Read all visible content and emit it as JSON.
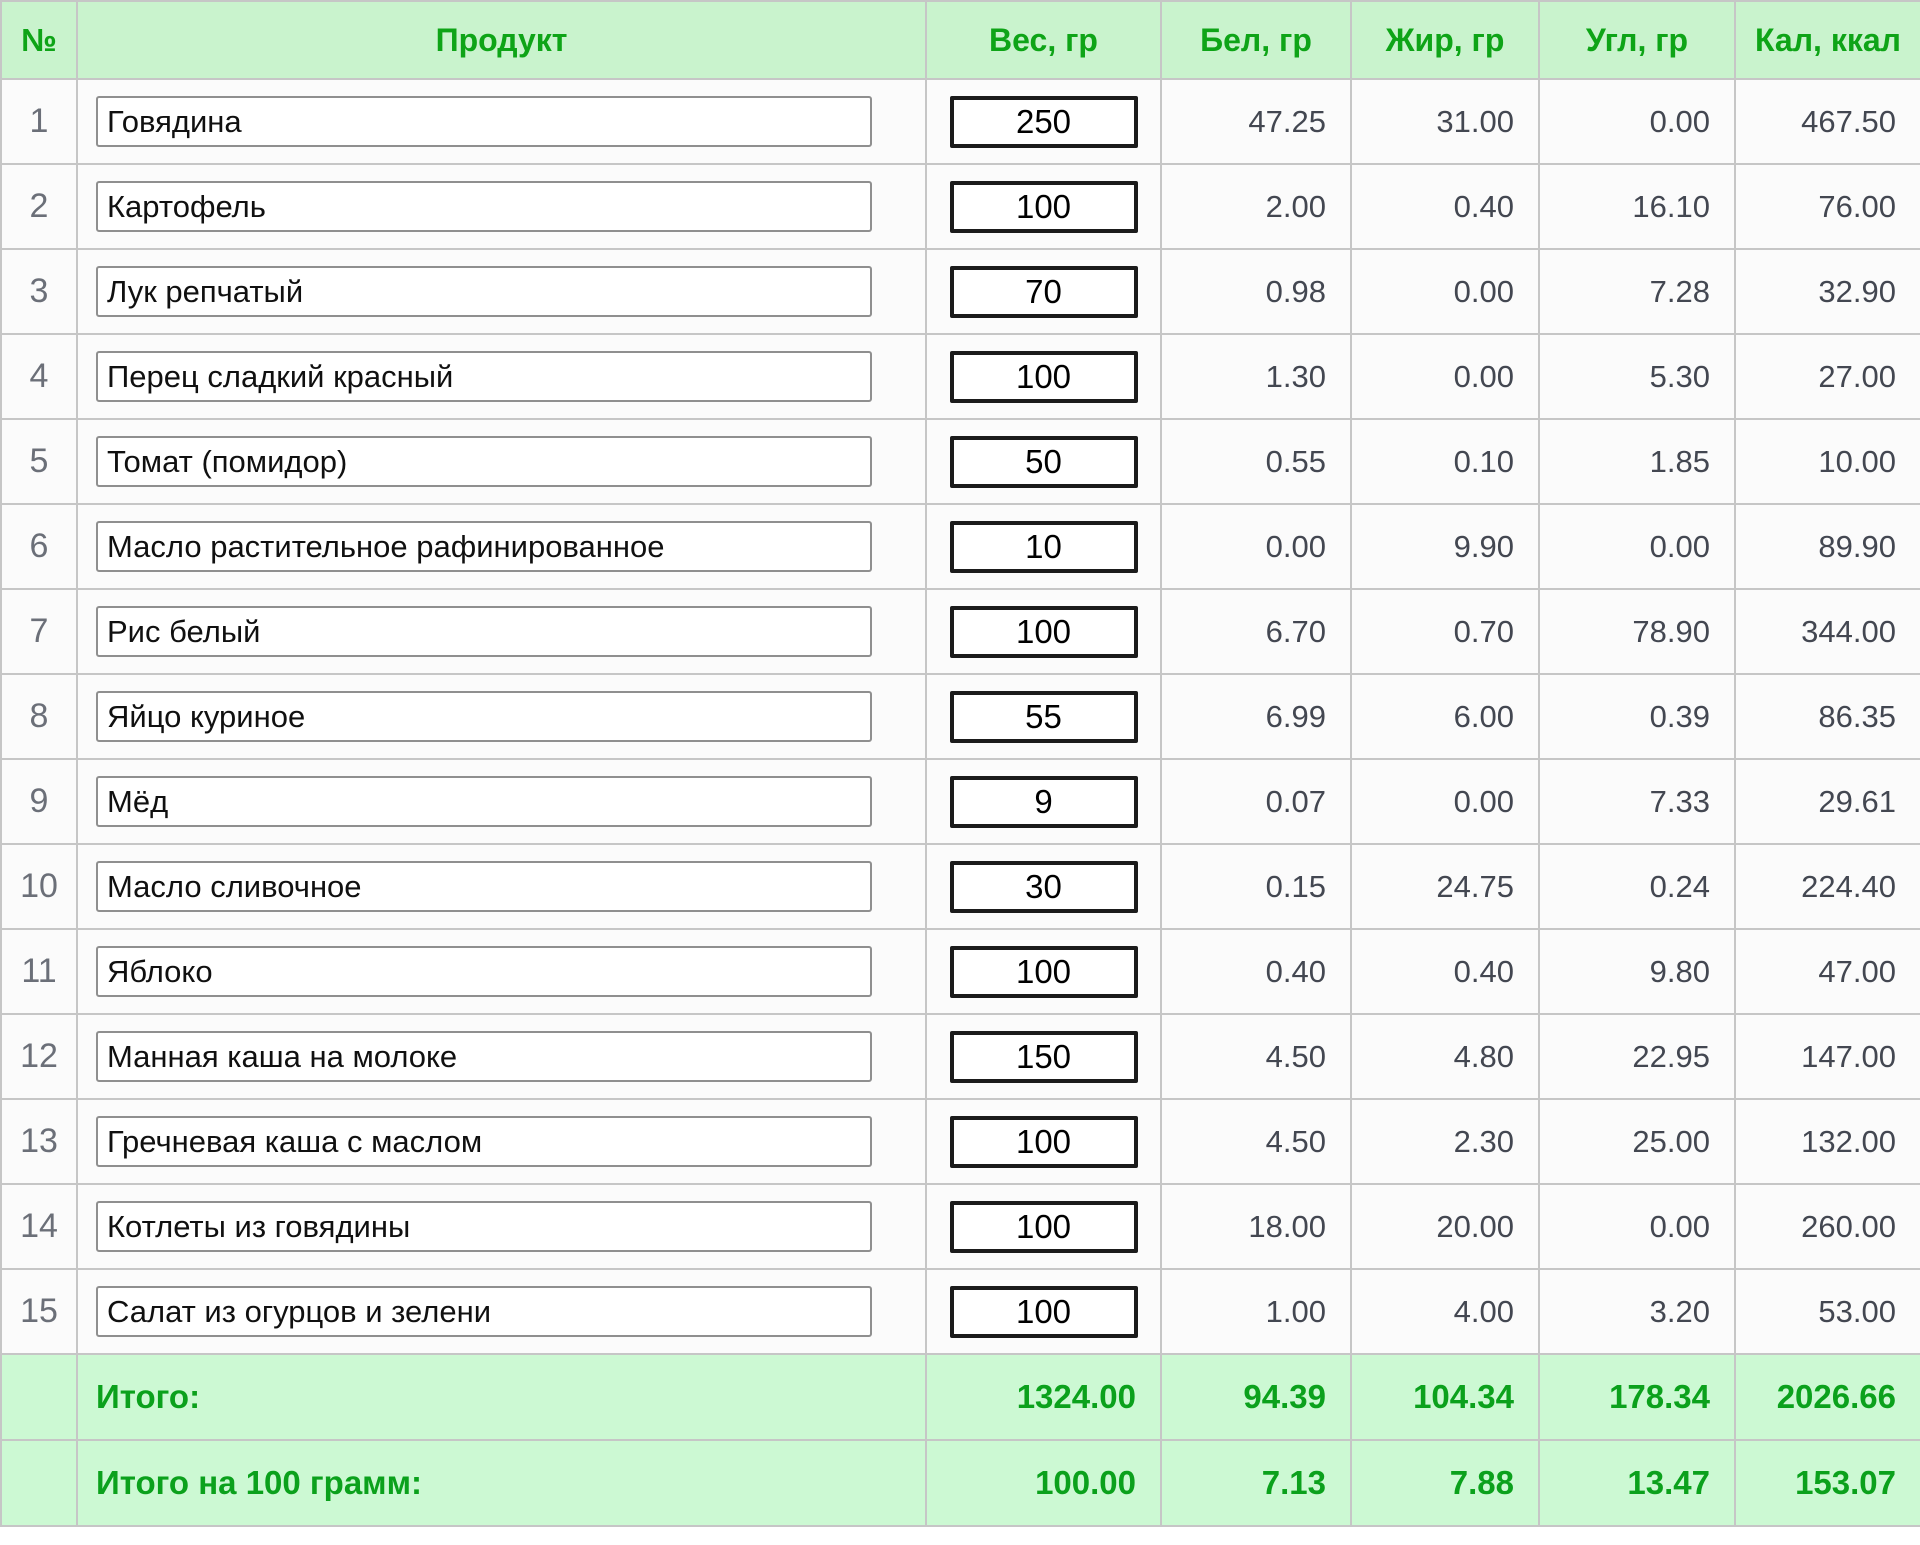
{
  "header": {
    "num": "№",
    "product": "Продукт",
    "weight": "Вес, гр",
    "protein": "Бел, гр",
    "fat": "Жир, гр",
    "carbs": "Угл, гр",
    "calories": "Кал, ккал"
  },
  "rows": [
    {
      "num": "1",
      "product": "Говядина",
      "weight": "250",
      "protein": "47.25",
      "fat": "31.00",
      "carbs": "0.00",
      "calories": "467.50"
    },
    {
      "num": "2",
      "product": "Картофель",
      "weight": "100",
      "protein": "2.00",
      "fat": "0.40",
      "carbs": "16.10",
      "calories": "76.00"
    },
    {
      "num": "3",
      "product": "Лук репчатый",
      "weight": "70",
      "protein": "0.98",
      "fat": "0.00",
      "carbs": "7.28",
      "calories": "32.90"
    },
    {
      "num": "4",
      "product": "Перец сладкий красный",
      "weight": "100",
      "protein": "1.30",
      "fat": "0.00",
      "carbs": "5.30",
      "calories": "27.00"
    },
    {
      "num": "5",
      "product": "Томат (помидор)",
      "weight": "50",
      "protein": "0.55",
      "fat": "0.10",
      "carbs": "1.85",
      "calories": "10.00"
    },
    {
      "num": "6",
      "product": "Масло растительное рафинированное",
      "weight": "10",
      "protein": "0.00",
      "fat": "9.90",
      "carbs": "0.00",
      "calories": "89.90"
    },
    {
      "num": "7",
      "product": "Рис белый",
      "weight": "100",
      "protein": "6.70",
      "fat": "0.70",
      "carbs": "78.90",
      "calories": "344.00"
    },
    {
      "num": "8",
      "product": "Яйцо куриное",
      "weight": "55",
      "protein": "6.99",
      "fat": "6.00",
      "carbs": "0.39",
      "calories": "86.35"
    },
    {
      "num": "9",
      "product": "Мёд",
      "weight": "9",
      "protein": "0.07",
      "fat": "0.00",
      "carbs": "7.33",
      "calories": "29.61"
    },
    {
      "num": "10",
      "product": "Масло сливочное",
      "weight": "30",
      "protein": "0.15",
      "fat": "24.75",
      "carbs": "0.24",
      "calories": "224.40"
    },
    {
      "num": "11",
      "product": "Яблоко",
      "weight": "100",
      "protein": "0.40",
      "fat": "0.40",
      "carbs": "9.80",
      "calories": "47.00"
    },
    {
      "num": "12",
      "product": "Манная каша на молоке",
      "weight": "150",
      "protein": "4.50",
      "fat": "4.80",
      "carbs": "22.95",
      "calories": "147.00"
    },
    {
      "num": "13",
      "product": "Гречневая каша с маслом",
      "weight": "100",
      "protein": "4.50",
      "fat": "2.30",
      "carbs": "25.00",
      "calories": "132.00"
    },
    {
      "num": "14",
      "product": "Котлеты из говядины",
      "weight": "100",
      "protein": "18.00",
      "fat": "20.00",
      "carbs": "0.00",
      "calories": "260.00"
    },
    {
      "num": "15",
      "product": "Салат из огурцов и зелени",
      "weight": "100",
      "protein": "1.00",
      "fat": "4.00",
      "carbs": "3.20",
      "calories": "53.00"
    }
  ],
  "totals": {
    "label": "Итого:",
    "weight": "1324.00",
    "protein": "94.39",
    "fat": "104.34",
    "carbs": "178.34",
    "calories": "2026.66"
  },
  "totals_per_100g": {
    "label": "Итого на 100 грамм:",
    "weight": "100.00",
    "protein": "7.13",
    "fat": "7.88",
    "carbs": "13.47",
    "calories": "153.07"
  },
  "colors": {
    "header_bg": "#c9f3cd",
    "header_text": "#0ea417",
    "totals_bg": "#ccf9d3",
    "totals_text": "#0ba11c",
    "grid_border": "#c6c6c6",
    "value_text": "#434751",
    "row_number_text": "#6b6f78"
  }
}
